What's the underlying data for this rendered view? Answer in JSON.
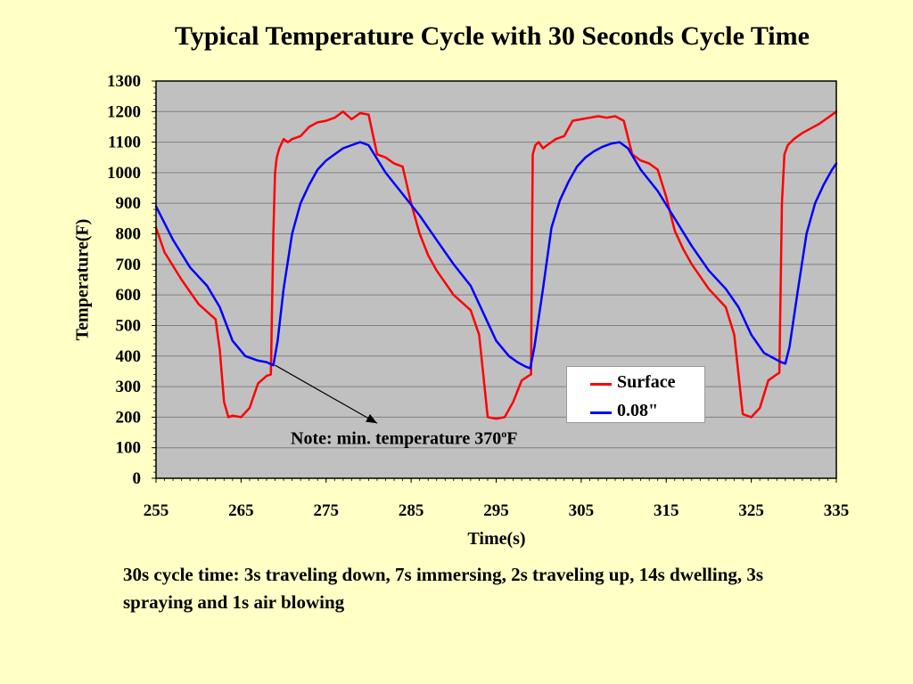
{
  "chart_data": {
    "type": "line",
    "title": "Typical Temperature Cycle with 30 Seconds Cycle Time",
    "xlabel": "Time(s)",
    "ylabel": "Temperature(F)",
    "xlim": [
      255,
      335
    ],
    "ylim": [
      0,
      1300
    ],
    "x_ticks": [
      "255",
      "265",
      "275",
      "285",
      "295",
      "305",
      "315",
      "325",
      "335"
    ],
    "y_ticks": [
      "0",
      "100",
      "200",
      "300",
      "400",
      "500",
      "600",
      "700",
      "800",
      "900",
      "1000",
      "1100",
      "1200",
      "1300"
    ],
    "grid": "horizontal",
    "plot_background": "#C0C0C0",
    "legend_position": "bottom-right",
    "series": [
      {
        "name": "Surface",
        "color": "#FF0000",
        "x": [
          255,
          256,
          258,
          260,
          262,
          262.5,
          263,
          263.5,
          264,
          265,
          266,
          267,
          268,
          268.5,
          268.8,
          269,
          269.2,
          269.5,
          270,
          270.5,
          271,
          272,
          273,
          274,
          275,
          276,
          277,
          278,
          279,
          280,
          281,
          282,
          283,
          284,
          285,
          286,
          287,
          288,
          290,
          292,
          293,
          294,
          295,
          296,
          297,
          298,
          298.8,
          299.1,
          299.3,
          299.6,
          300,
          300.5,
          301,
          302,
          303,
          304,
          305,
          306,
          307,
          308,
          309,
          310,
          311,
          312,
          313,
          314,
          315,
          316,
          317,
          318,
          320,
          322,
          323,
          324,
          325,
          326,
          327,
          328,
          328.3,
          328.6,
          328.9,
          329.3,
          330,
          331,
          332,
          333,
          334,
          335
        ],
        "y": [
          820,
          740,
          650,
          570,
          520,
          420,
          250,
          200,
          205,
          200,
          230,
          310,
          335,
          340,
          800,
          1000,
          1050,
          1080,
          1110,
          1100,
          1110,
          1120,
          1150,
          1165,
          1170,
          1180,
          1200,
          1175,
          1195,
          1190,
          1060,
          1050,
          1030,
          1020,
          900,
          800,
          730,
          680,
          600,
          550,
          470,
          200,
          195,
          200,
          250,
          320,
          335,
          340,
          1060,
          1090,
          1100,
          1080,
          1090,
          1110,
          1120,
          1170,
          1175,
          1180,
          1185,
          1180,
          1185,
          1170,
          1060,
          1040,
          1030,
          1010,
          920,
          810,
          750,
          700,
          620,
          560,
          470,
          210,
          200,
          230,
          320,
          340,
          345,
          900,
          1060,
          1090,
          1110,
          1130,
          1145,
          1160,
          1180,
          1200
        ]
      },
      {
        "name": "0.08\"",
        "color": "#0000FF",
        "x": [
          255,
          257,
          259,
          261,
          262.5,
          264,
          265.5,
          267,
          268,
          268.8,
          269.3,
          270,
          271,
          272,
          273,
          274,
          275,
          276,
          277,
          278,
          279,
          280,
          282,
          284,
          286,
          288,
          290,
          292,
          293.5,
          295,
          296.5,
          297.5,
          298.5,
          299,
          299.5,
          300.5,
          301.5,
          302.5,
          303.5,
          304.5,
          305.5,
          306.5,
          307.5,
          308.5,
          309.5,
          310.5,
          312,
          314,
          316,
          318,
          320,
          322,
          323.5,
          325,
          326.5,
          327.5,
          328.5,
          329,
          329.5,
          330.5,
          331.5,
          332.5,
          333.5,
          334.5,
          335
        ],
        "y": [
          890,
          780,
          690,
          630,
          560,
          450,
          400,
          385,
          380,
          370,
          450,
          620,
          800,
          900,
          960,
          1010,
          1040,
          1060,
          1080,
          1090,
          1100,
          1090,
          1000,
          930,
          860,
          780,
          700,
          630,
          540,
          450,
          400,
          380,
          365,
          360,
          430,
          620,
          820,
          910,
          970,
          1020,
          1050,
          1070,
          1085,
          1095,
          1100,
          1080,
          1010,
          940,
          850,
          760,
          680,
          620,
          560,
          470,
          410,
          395,
          380,
          375,
          430,
          620,
          800,
          900,
          960,
          1010,
          1030
        ]
      }
    ]
  },
  "annotation": {
    "text": "Note: min. temperature 370",
    "sup": "o",
    "suffix": "F",
    "arrow_from": [
      269,
      370
    ],
    "arrow_to": [
      281,
      180
    ]
  },
  "caption": "30s cycle time: 3s traveling down, 7s immersing, 2s traveling up, 14s dwelling, 3s spraying and 1s air blowing"
}
